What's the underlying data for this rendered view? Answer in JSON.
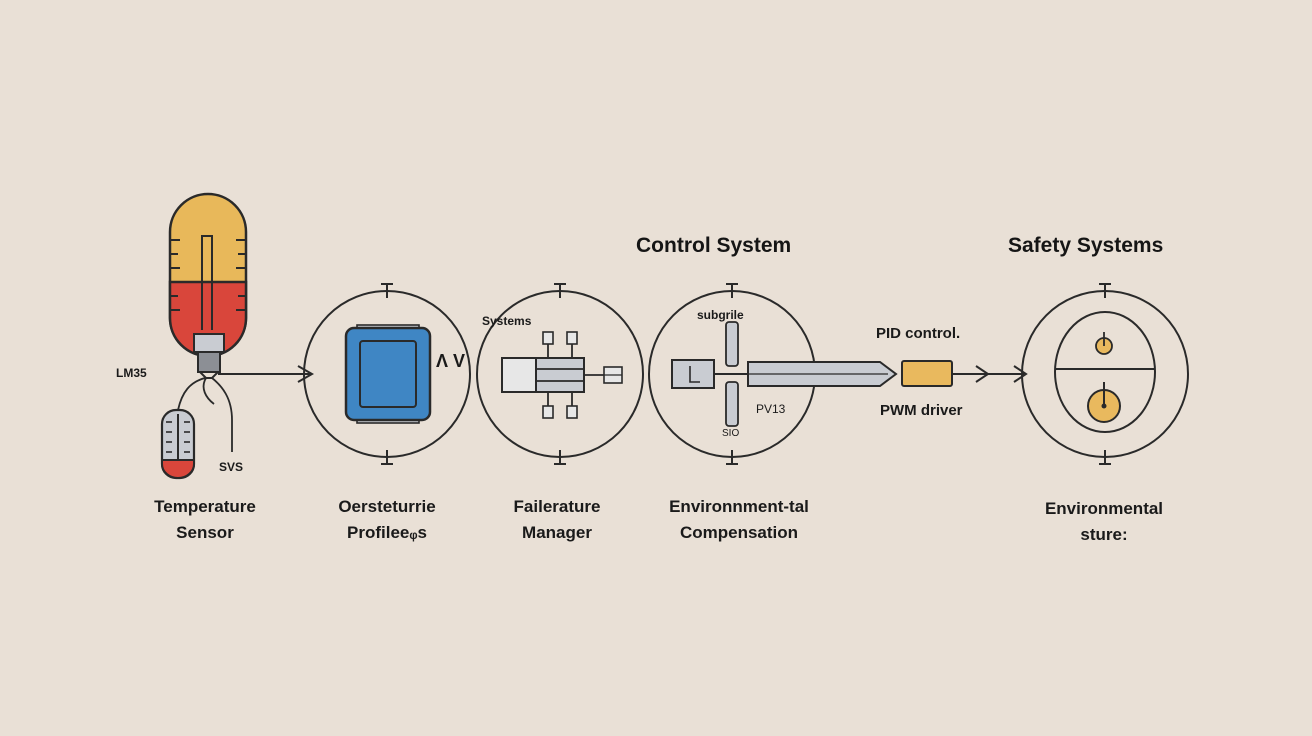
{
  "headings": {
    "control": "Control System",
    "safety": "Safety Systems"
  },
  "stages": [
    {
      "line1": "Temperature",
      "line2": "Sensor"
    },
    {
      "line1": "Oersteturrie",
      "line2": "Profileeᵩs"
    },
    {
      "line1": "Failerature",
      "line2": "Manager"
    },
    {
      "line1": "Environnment-tal",
      "line2": "Compensation"
    },
    {
      "line1": "Environmental",
      "line2": "sture:"
    }
  ],
  "annotations": {
    "lm35": "LM35",
    "svs": "SVS",
    "profile_mark": "Λ V",
    "systems": "Systems",
    "subgrile": "subgrile",
    "pv13": "PV13",
    "sio": "SIO",
    "pid": "PID control.",
    "pwm": "PWM driver"
  },
  "colors": {
    "background": "#e9e0d6",
    "line": "#2a2a2a",
    "gauge_yellow": "#e8b85a",
    "gauge_red": "#d9463b",
    "chip_blue": "#3f86c4",
    "pid_block": "#e9b95e",
    "gray_part": "#c9ccd2"
  }
}
